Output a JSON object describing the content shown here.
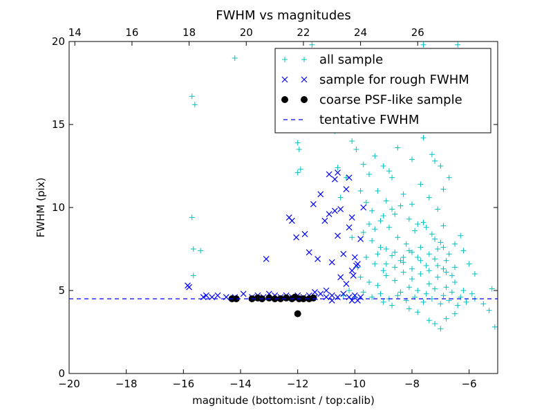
{
  "chart_data": {
    "type": "scatter",
    "title": "FWHM vs magnitudes",
    "xlabel": "magnitude (bottom:isnt / top:calib)",
    "ylabel": "FWHM (pix)",
    "xlim": [
      -20,
      -5
    ],
    "ylim": [
      0,
      20
    ],
    "x_ticks": [
      -20,
      -18,
      -16,
      -14,
      -12,
      -10,
      -8,
      -6
    ],
    "x_tick_labels": [
      "−20",
      "−18",
      "−16",
      "−14",
      "−12",
      "−10",
      "−8",
      "−6"
    ],
    "y_ticks": [
      0,
      5,
      10,
      15,
      20
    ],
    "y_tick_labels": [
      "0",
      "5",
      "10",
      "15",
      "20"
    ],
    "top_axis": {
      "offset": 33.8,
      "ticks": [
        14,
        16,
        18,
        20,
        22,
        24,
        26
      ],
      "tick_labels": [
        "14",
        "16",
        "18",
        "20",
        "22",
        "24",
        "26"
      ]
    },
    "legend_position": "upper right",
    "grid": false,
    "series": [
      {
        "name": "all sample",
        "marker": "plus",
        "color": "#00bfbf",
        "points": [
          [
            -15.7,
            16.7
          ],
          [
            -15.6,
            16.2
          ],
          [
            -14.2,
            19.0
          ],
          [
            -11.5,
            19.8
          ],
          [
            -7.6,
            19.8
          ],
          [
            -6.4,
            19.8
          ],
          [
            -15.7,
            9.4
          ],
          [
            -15.65,
            7.5
          ],
          [
            -15.4,
            7.4
          ],
          [
            -15.65,
            5.9
          ],
          [
            -12.0,
            13.9
          ],
          [
            -11.95,
            13.5
          ],
          [
            -12.0,
            12.1
          ],
          [
            -11.9,
            12.3
          ],
          [
            -10.7,
            14.6
          ],
          [
            -10.1,
            14.0
          ],
          [
            -9.95,
            13.5
          ],
          [
            -9.7,
            12.6
          ],
          [
            -9.5,
            12.0
          ],
          [
            -9.2,
            11.0
          ],
          [
            -8.8,
            12.2
          ],
          [
            -8.5,
            13.6
          ],
          [
            -8.2,
            14.9
          ],
          [
            -7.9,
            15.6
          ],
          [
            -7.6,
            14.2
          ],
          [
            -7.3,
            13.2
          ],
          [
            -7.0,
            12.5
          ],
          [
            -6.7,
            11.8
          ],
          [
            -9.8,
            11.0
          ],
          [
            -9.6,
            10.3
          ],
          [
            -9.4,
            9.8
          ],
          [
            -9.1,
            9.2
          ],
          [
            -8.9,
            10.4
          ],
          [
            -8.6,
            9.6
          ],
          [
            -8.3,
            10.8
          ],
          [
            -8.0,
            10.2
          ],
          [
            -7.7,
            11.4
          ],
          [
            -7.4,
            10.6
          ],
          [
            -7.1,
            9.9
          ],
          [
            -6.9,
            8.9
          ],
          [
            -9.7,
            8.5
          ],
          [
            -9.4,
            8.0
          ],
          [
            -9.1,
            7.6
          ],
          [
            -8.8,
            8.8
          ],
          [
            -8.5,
            8.2
          ],
          [
            -8.2,
            7.8
          ],
          [
            -7.9,
            8.6
          ],
          [
            -7.6,
            9.1
          ],
          [
            -7.3,
            8.4
          ],
          [
            -7.0,
            7.9
          ],
          [
            -6.7,
            7.2
          ],
          [
            -9.6,
            7.0
          ],
          [
            -9.3,
            6.6
          ],
          [
            -9.0,
            6.2
          ],
          [
            -8.7,
            7.1
          ],
          [
            -8.4,
            6.8
          ],
          [
            -8.1,
            7.4
          ],
          [
            -7.8,
            7.0
          ],
          [
            -7.5,
            6.5
          ],
          [
            -7.2,
            6.9
          ],
          [
            -6.9,
            6.3
          ],
          [
            -6.6,
            5.9
          ],
          [
            -9.8,
            5.8
          ],
          [
            -9.5,
            5.5
          ],
          [
            -9.2,
            5.3
          ],
          [
            -8.9,
            5.9
          ],
          [
            -8.6,
            5.6
          ],
          [
            -8.3,
            6.1
          ],
          [
            -8.0,
            5.7
          ],
          [
            -7.7,
            6.0
          ],
          [
            -7.4,
            5.4
          ],
          [
            -7.1,
            5.8
          ],
          [
            -6.8,
            5.2
          ],
          [
            -6.5,
            5.5
          ],
          [
            -6.2,
            5.0
          ],
          [
            -5.9,
            4.8
          ],
          [
            -9.7,
            4.9
          ],
          [
            -9.4,
            4.6
          ],
          [
            -9.1,
            4.8
          ],
          [
            -8.8,
            4.5
          ],
          [
            -8.5,
            4.7
          ],
          [
            -8.2,
            4.4
          ],
          [
            -7.9,
            4.6
          ],
          [
            -7.6,
            4.3
          ],
          [
            -7.3,
            4.5
          ],
          [
            -7.0,
            4.2
          ],
          [
            -6.7,
            4.4
          ],
          [
            -6.4,
            4.1
          ],
          [
            -6.1,
            4.3
          ],
          [
            -5.8,
            4.5
          ],
          [
            -5.5,
            4.2
          ],
          [
            -5.2,
            5.1
          ],
          [
            -5.1,
            2.8
          ],
          [
            -5.3,
            3.8
          ],
          [
            -7.4,
            3.2
          ],
          [
            -7.2,
            3.0
          ],
          [
            -7.0,
            2.7
          ],
          [
            -6.8,
            3.3
          ],
          [
            -6.5,
            3.6
          ],
          [
            -8.1,
            3.9
          ],
          [
            -7.8,
            3.7
          ],
          [
            -6.0,
            6.6
          ],
          [
            -5.8,
            6.0
          ],
          [
            -6.2,
            7.4
          ],
          [
            -6.5,
            7.8
          ],
          [
            -6.3,
            8.3
          ],
          [
            -7.2,
            12.8
          ],
          [
            -6.9,
            11.1
          ],
          [
            -8.7,
            11.8
          ],
          [
            -9.0,
            12.5
          ],
          [
            -9.3,
            13.1
          ],
          [
            -8.0,
            12.9
          ],
          [
            -7.7,
            16.0
          ],
          [
            -8.3,
            15.4
          ],
          [
            -10.2,
            5.0
          ],
          [
            -10.4,
            4.7
          ],
          [
            -10.0,
            4.6
          ],
          [
            -9.9,
            6.4
          ],
          [
            -10.1,
            8.2
          ],
          [
            -10.3,
            11.8
          ],
          [
            -10.5,
            10.6
          ],
          [
            -10.6,
            12.4
          ],
          [
            -11.0,
            15.4
          ],
          [
            -8.4,
            4.9
          ],
          [
            -8.1,
            5.2
          ],
          [
            -7.8,
            5.0
          ],
          [
            -7.5,
            4.8
          ],
          [
            -7.2,
            5.1
          ],
          [
            -6.9,
            4.7
          ],
          [
            -6.6,
            4.9
          ],
          [
            -6.3,
            4.6
          ],
          [
            -9.0,
            4.3
          ],
          [
            -8.7,
            4.1
          ],
          [
            -9.5,
            9.0
          ],
          [
            -9.3,
            8.7
          ],
          [
            -9.0,
            9.5
          ],
          [
            -8.7,
            9.9
          ],
          [
            -8.4,
            10.1
          ],
          [
            -8.1,
            9.3
          ],
          [
            -7.8,
            9.0
          ],
          [
            -7.5,
            8.8
          ],
          [
            -7.2,
            8.1
          ],
          [
            -6.9,
            7.6
          ],
          [
            -8.9,
            6.6
          ],
          [
            -8.6,
            6.4
          ],
          [
            -8.3,
            6.7
          ],
          [
            -8.0,
            6.3
          ],
          [
            -7.7,
            6.8
          ],
          [
            -7.4,
            6.2
          ],
          [
            -7.1,
            6.5
          ],
          [
            -6.8,
            6.1
          ],
          [
            -9.2,
            7.2
          ],
          [
            -8.9,
            7.5
          ],
          [
            -8.6,
            7.3
          ],
          [
            -8.3,
            7.0
          ],
          [
            -8.0,
            7.3
          ],
          [
            -7.7,
            7.6
          ],
          [
            -7.4,
            7.2
          ],
          [
            -7.1,
            7.5
          ],
          [
            -6.8,
            6.8
          ],
          [
            -6.5,
            6.4
          ]
        ]
      },
      {
        "name": "sample for rough FWHM",
        "marker": "x",
        "color": "#0000ff",
        "points": [
          [
            -15.85,
            5.3
          ],
          [
            -15.8,
            5.2
          ],
          [
            -15.3,
            4.6
          ],
          [
            -15.2,
            4.7
          ],
          [
            -15.0,
            4.6
          ],
          [
            -14.8,
            4.7
          ],
          [
            -14.5,
            4.6
          ],
          [
            -14.2,
            4.6
          ],
          [
            -13.9,
            4.8
          ],
          [
            -13.6,
            4.6
          ],
          [
            -13.4,
            4.7
          ],
          [
            -13.2,
            4.6
          ],
          [
            -13.0,
            4.8
          ],
          [
            -12.8,
            4.7
          ],
          [
            -12.6,
            4.6
          ],
          [
            -12.4,
            4.7
          ],
          [
            -12.2,
            4.6
          ],
          [
            -12.0,
            4.7
          ],
          [
            -11.8,
            4.6
          ],
          [
            -11.6,
            4.7
          ],
          [
            -11.4,
            4.6
          ],
          [
            -11.2,
            4.8
          ],
          [
            -11.0,
            4.6
          ],
          [
            -10.8,
            4.7
          ],
          [
            -10.6,
            4.6
          ],
          [
            -10.4,
            4.8
          ],
          [
            -10.2,
            4.6
          ],
          [
            -10.0,
            4.7
          ],
          [
            -9.8,
            4.6
          ],
          [
            -13.1,
            6.9
          ],
          [
            -12.3,
            9.4
          ],
          [
            -12.2,
            9.2
          ],
          [
            -12.05,
            8.2
          ],
          [
            -11.75,
            8.4
          ],
          [
            -11.6,
            7.3
          ],
          [
            -11.45,
            10.2
          ],
          [
            -11.3,
            6.9
          ],
          [
            -11.2,
            10.8
          ],
          [
            -11.05,
            9.2
          ],
          [
            -10.9,
            9.6
          ],
          [
            -10.8,
            6.7
          ],
          [
            -10.7,
            9.8
          ],
          [
            -10.6,
            8.3
          ],
          [
            -10.5,
            9.9
          ],
          [
            -10.4,
            7.2
          ],
          [
            -10.3,
            11.1
          ],
          [
            -10.2,
            8.8
          ],
          [
            -10.1,
            9.4
          ],
          [
            -10.0,
            7.0
          ],
          [
            -9.9,
            6.6
          ],
          [
            -9.8,
            8.1
          ],
          [
            -9.7,
            10.0
          ],
          [
            -10.1,
            6.2
          ],
          [
            -10.3,
            5.4
          ],
          [
            -10.5,
            5.8
          ],
          [
            -10.05,
            5.9
          ],
          [
            -9.95,
            6.5
          ],
          [
            -10.7,
            11.7
          ],
          [
            -10.9,
            12.0
          ],
          [
            -10.6,
            12.1
          ],
          [
            -10.2,
            11.8
          ],
          [
            -11.4,
            4.9
          ],
          [
            -11.0,
            5.0
          ],
          [
            -10.8,
            4.4
          ],
          [
            -10.1,
            4.4
          ],
          [
            -9.9,
            4.4
          ]
        ]
      },
      {
        "name": "coarse PSF-like sample",
        "marker": "dot",
        "color": "#000000",
        "points": [
          [
            -14.3,
            4.5
          ],
          [
            -14.15,
            4.5
          ],
          [
            -13.6,
            4.5
          ],
          [
            -13.4,
            4.55
          ],
          [
            -13.25,
            4.5
          ],
          [
            -13.0,
            4.55
          ],
          [
            -12.8,
            4.5
          ],
          [
            -12.6,
            4.5
          ],
          [
            -12.4,
            4.55
          ],
          [
            -12.2,
            4.5
          ],
          [
            -12.1,
            4.6
          ],
          [
            -11.95,
            4.5
          ],
          [
            -11.8,
            4.5
          ],
          [
            -11.6,
            4.5
          ],
          [
            -11.45,
            4.55
          ],
          [
            -12.0,
            3.6
          ]
        ]
      },
      {
        "name": "tentative FWHM",
        "marker": "dashed-line",
        "color": "#0000ff",
        "y": 4.5
      }
    ]
  }
}
